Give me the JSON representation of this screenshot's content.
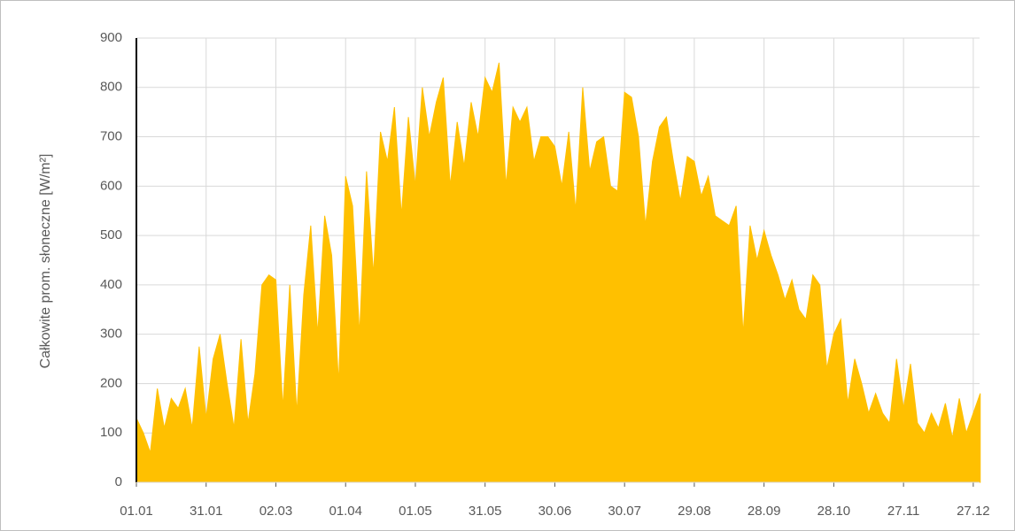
{
  "chart_data": {
    "type": "area",
    "y_label": "Całkowite prom. słoneczne [W/m²]",
    "color": "#ffc000",
    "grid": true,
    "xlim": [
      0,
      365
    ],
    "xticks": [
      {
        "value": 0,
        "label": "01.01"
      },
      {
        "value": 30,
        "label": "31.01"
      },
      {
        "value": 60,
        "label": "02.03"
      },
      {
        "value": 90,
        "label": "01.04"
      },
      {
        "value": 120,
        "label": "01.05"
      },
      {
        "value": 150,
        "label": "31.05"
      },
      {
        "value": 180,
        "label": "30.06"
      },
      {
        "value": 210,
        "label": "30.07"
      },
      {
        "value": 240,
        "label": "29.08"
      },
      {
        "value": 270,
        "label": "28.09"
      },
      {
        "value": 300,
        "label": "28.10"
      },
      {
        "value": 330,
        "label": "27.11"
      },
      {
        "value": 360,
        "label": "27.12"
      }
    ],
    "ylim": [
      0,
      900
    ],
    "yticks": [
      0,
      100,
      200,
      300,
      400,
      500,
      600,
      700,
      800,
      900
    ],
    "x": [
      0,
      3,
      6,
      9,
      12,
      15,
      18,
      21,
      24,
      27,
      30,
      33,
      36,
      39,
      42,
      45,
      48,
      51,
      54,
      57,
      60,
      63,
      66,
      69,
      72,
      75,
      78,
      81,
      84,
      87,
      90,
      93,
      96,
      99,
      102,
      105,
      108,
      111,
      114,
      117,
      120,
      123,
      126,
      129,
      132,
      135,
      138,
      141,
      144,
      147,
      150,
      153,
      156,
      159,
      162,
      165,
      168,
      171,
      174,
      177,
      180,
      183,
      186,
      189,
      192,
      195,
      198,
      201,
      204,
      207,
      210,
      213,
      216,
      219,
      222,
      225,
      228,
      231,
      234,
      237,
      240,
      243,
      246,
      249,
      252,
      255,
      258,
      261,
      264,
      267,
      270,
      273,
      276,
      279,
      282,
      285,
      288,
      291,
      294,
      297,
      300,
      303,
      306,
      309,
      312,
      315,
      318,
      321,
      324,
      327,
      330,
      333,
      336,
      339,
      342,
      345,
      348,
      351,
      354,
      357,
      360,
      363
    ],
    "values": [
      130,
      100,
      60,
      190,
      110,
      170,
      150,
      190,
      110,
      275,
      130,
      250,
      300,
      200,
      110,
      290,
      120,
      220,
      400,
      420,
      410,
      150,
      400,
      140,
      380,
      520,
      300,
      540,
      460,
      200,
      620,
      560,
      300,
      630,
      420,
      710,
      650,
      760,
      540,
      740,
      600,
      800,
      700,
      770,
      820,
      600,
      730,
      640,
      770,
      700,
      820,
      790,
      850,
      600,
      760,
      730,
      760,
      650,
      700,
      700,
      680,
      600,
      710,
      550,
      800,
      630,
      690,
      700,
      600,
      590,
      790,
      780,
      700,
      520,
      650,
      720,
      740,
      650,
      570,
      660,
      650,
      580,
      620,
      540,
      530,
      520,
      560,
      300,
      520,
      450,
      510,
      460,
      420,
      370,
      410,
      350,
      330,
      420,
      400,
      230,
      300,
      330,
      160,
      250,
      200,
      140,
      180,
      140,
      120,
      250,
      150,
      240,
      120,
      100,
      140,
      110,
      160,
      90,
      170,
      100,
      140,
      180
    ]
  }
}
